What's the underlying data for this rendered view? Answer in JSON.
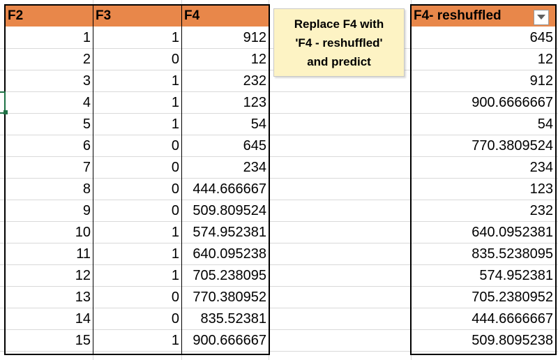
{
  "headers": {
    "f2": "F2",
    "f3": "F3",
    "f4": "F4",
    "f4_reshuffled": "F4- reshuffled"
  },
  "note": {
    "line1": "Replace F4 with",
    "line2": "'F4 - reshuffled'",
    "line3": "and predict"
  },
  "icons": {
    "filter": "dropdown-arrow-icon"
  },
  "colors": {
    "header_bg": "#e8874a",
    "note_bg": "#fdf3c4",
    "selection": "#1e7145"
  },
  "rows": [
    {
      "f2": "1",
      "f3": "1",
      "f4": "912",
      "f4r": "645"
    },
    {
      "f2": "2",
      "f3": "0",
      "f4": "12",
      "f4r": "12"
    },
    {
      "f2": "3",
      "f3": "1",
      "f4": "232",
      "f4r": "912"
    },
    {
      "f2": "4",
      "f3": "1",
      "f4": "123",
      "f4r": "900.6666667"
    },
    {
      "f2": "5",
      "f3": "1",
      "f4": "54",
      "f4r": "54"
    },
    {
      "f2": "6",
      "f3": "0",
      "f4": "645",
      "f4r": "770.3809524"
    },
    {
      "f2": "7",
      "f3": "0",
      "f4": "234",
      "f4r": "234"
    },
    {
      "f2": "8",
      "f3": "0",
      "f4": "444.666667",
      "f4r": "123"
    },
    {
      "f2": "9",
      "f3": "0",
      "f4": "509.809524",
      "f4r": "232"
    },
    {
      "f2": "10",
      "f3": "1",
      "f4": "574.952381",
      "f4r": "640.0952381"
    },
    {
      "f2": "11",
      "f3": "1",
      "f4": "640.095238",
      "f4r": "835.5238095"
    },
    {
      "f2": "12",
      "f3": "1",
      "f4": "705.238095",
      "f4r": "574.952381"
    },
    {
      "f2": "13",
      "f3": "0",
      "f4": "770.380952",
      "f4r": "705.2380952"
    },
    {
      "f2": "14",
      "f3": "0",
      "f4": "835.52381",
      "f4r": "444.6666667"
    },
    {
      "f2": "15",
      "f3": "1",
      "f4": "900.666667",
      "f4r": "509.8095238"
    }
  ]
}
